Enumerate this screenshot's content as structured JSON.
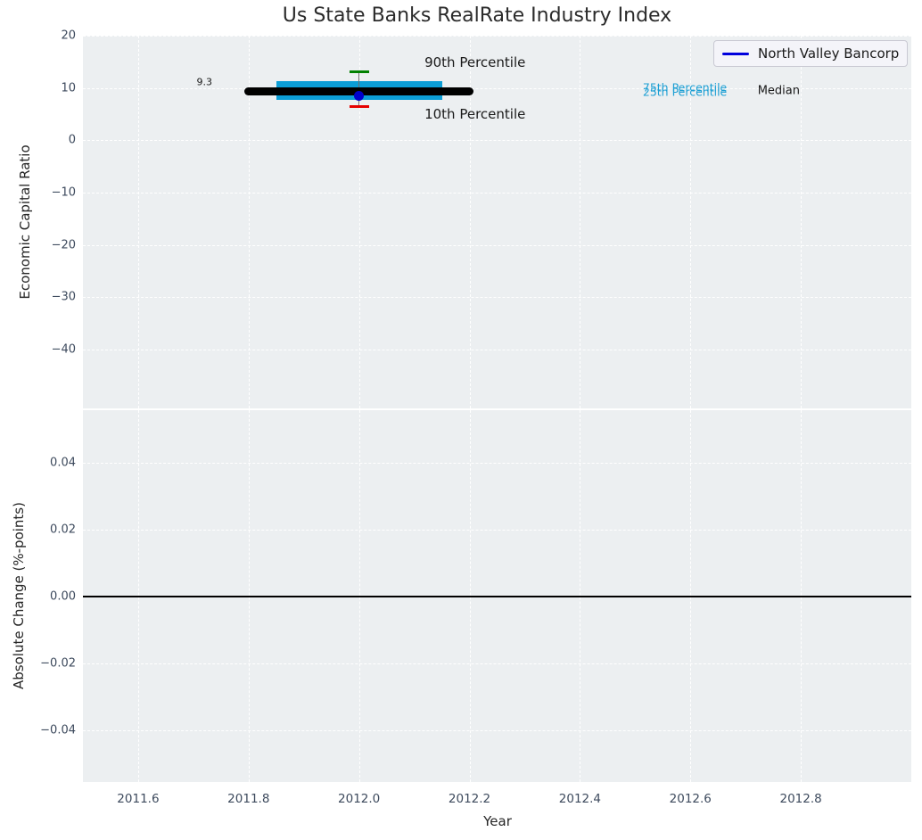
{
  "title": "Us State Banks RealRate Industry Index",
  "legend": {
    "label": "North Valley Bancorp"
  },
  "colors": {
    "figure_bg": "#ffffff",
    "plot_bg": "#eceff1",
    "grid": "#ffffff",
    "tick_label": "#3d4a5d",
    "box_fill": "#0c9ed6",
    "median_line": "#000000",
    "whisker_line": "#6e6e6e",
    "cap_90th": "#008000",
    "cap_10th": "#e60000",
    "point": "#0000cc",
    "legend_line": "#0000dd",
    "percentile_label": "#1c9fd4",
    "zero_line": "#000000"
  },
  "chart_data": {
    "type": "box-timeseries",
    "title": "Us State Banks RealRate Industry Index",
    "xlabel": "Year",
    "xlim": [
      2011.5,
      2013.0
    ],
    "xticks": [
      {
        "v": 2011.6,
        "label": "2011.6"
      },
      {
        "v": 2011.8,
        "label": "2011.8"
      },
      {
        "v": 2012.0,
        "label": "2012.0"
      },
      {
        "v": 2012.2,
        "label": "2012.2"
      },
      {
        "v": 2012.4,
        "label": "2012.4"
      },
      {
        "v": 2012.6,
        "label": "2012.6"
      },
      {
        "v": 2012.8,
        "label": "2012.8"
      }
    ],
    "top_panel": {
      "ylabel": "Economic Capital Ratio",
      "ylim": [
        -51.3,
        20
      ],
      "grid": true,
      "yticks": [
        {
          "v": 20,
          "label": "20"
        },
        {
          "v": 10,
          "label": "10"
        },
        {
          "v": 0,
          "label": "0"
        },
        {
          "v": -10,
          "label": "−10"
        },
        {
          "v": -20,
          "label": "−20"
        },
        {
          "v": -30,
          "label": "−30"
        },
        {
          "v": -40,
          "label": "−40"
        }
      ],
      "industry_box": {
        "x_start": 2011.85,
        "x_end": 2012.15,
        "p25": 7.7,
        "p75": 11.3
      },
      "industry_median": {
        "x_start": 2011.8,
        "x_end": 2012.2,
        "value": 9.3
      },
      "industry_whisker": {
        "x": 2012.0,
        "p10": 6.4,
        "p90": 13.1
      },
      "company_point": {
        "series": "North Valley Bancorp",
        "x": 2012.0,
        "y": 8.5
      },
      "annotations": [
        {
          "id": "label-90th-percentile",
          "text": "90th Percentile",
          "x": 2012.21,
          "y": 14.8,
          "color": "#1a1a1a",
          "size": 15
        },
        {
          "id": "label-10th-percentile",
          "text": "10th Percentile",
          "x": 2012.21,
          "y": 5.0,
          "color": "#1a1a1a",
          "size": 15
        },
        {
          "id": "label-median-value",
          "text": "9.3",
          "x": 2011.72,
          "y": 11.1,
          "color": "#1a1a1a",
          "size": 11
        },
        {
          "id": "label-75th-percentile",
          "text": "75th Percentile",
          "x": 2012.59,
          "y": 10.1,
          "color": "#1c9fd4",
          "size": 12.5
        },
        {
          "id": "label-25th-percentile",
          "text": "25th Percentile",
          "x": 2012.59,
          "y": 9.25,
          "color": "#1c9fd4",
          "size": 12.5
        },
        {
          "id": "label-median",
          "text": "Median",
          "x": 2012.76,
          "y": 9.4,
          "color": "#1a1a1a",
          "size": 13
        }
      ]
    },
    "bottom_panel": {
      "ylabel": "Absolute Change (%-points)",
      "ylim": [
        -0.0555,
        0.0557
      ],
      "grid": true,
      "yticks": [
        {
          "v": 0.04,
          "label": "0.04"
        },
        {
          "v": 0.02,
          "label": "0.02"
        },
        {
          "v": 0.0,
          "label": "0.00"
        },
        {
          "v": -0.02,
          "label": "−0.02"
        },
        {
          "v": -0.04,
          "label": "−0.04"
        }
      ],
      "zero_line_y": 0.0
    }
  }
}
